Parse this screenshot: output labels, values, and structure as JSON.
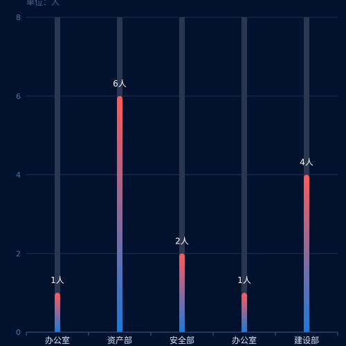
{
  "chart_data": {
    "type": "bar",
    "unit_label": "单位：人",
    "categories": [
      "办公室",
      "资产部",
      "安全部",
      "办公室",
      "建设部"
    ],
    "values": [
      1,
      6,
      2,
      1,
      4
    ],
    "data_labels": [
      "1人",
      "6人",
      "2人",
      "1人",
      "4人"
    ],
    "ylim": [
      0,
      8
    ],
    "yticks": [
      0,
      2,
      4,
      6,
      8
    ],
    "ytick_labels": [
      "0",
      "2",
      "4",
      "6",
      "8"
    ],
    "grid": true,
    "background_track": true,
    "colors": {
      "background": "#02112e",
      "bar_top": "#ff5a5a",
      "bar_bottom": "#1a7ad8",
      "track": "#2b3650",
      "grid": "#1f3152",
      "axis": "#3b5f8f"
    }
  }
}
